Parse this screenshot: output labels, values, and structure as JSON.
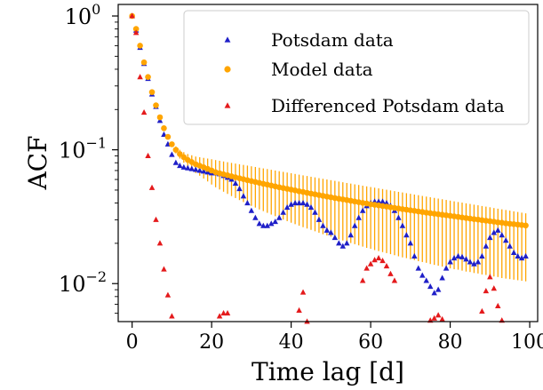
{
  "chart_data": {
    "type": "scatter",
    "title": "",
    "xlabel": "Time lag [d]",
    "ylabel": "ACF",
    "xlim": [
      -3.5,
      102
    ],
    "ylim": [
      0.0052,
      1.22
    ],
    "yscale": "log",
    "grid": false,
    "legend_position": "top-right",
    "x_ticks": [
      0,
      20,
      40,
      60,
      80,
      100
    ],
    "y_ticks": [
      {
        "value": 1,
        "base": "10",
        "exp": "0"
      },
      {
        "value": 0.1,
        "base": "10",
        "exp": "−1"
      },
      {
        "value": 0.01,
        "base": "10",
        "exp": "−2"
      }
    ],
    "colors": {
      "potsdam": "#1f1fc8",
      "model": "#ffa500",
      "differenced": "#e41a1c"
    },
    "series": [
      {
        "name": "Potsdam data",
        "marker": "triangle",
        "x": [
          0,
          1,
          2,
          3,
          4,
          5,
          6,
          7,
          8,
          9,
          10,
          11,
          12,
          13,
          14,
          15,
          16,
          17,
          18,
          19,
          20,
          21,
          22,
          23,
          24,
          25,
          26,
          27,
          28,
          29,
          30,
          31,
          32,
          33,
          34,
          35,
          36,
          37,
          38,
          39,
          40,
          41,
          42,
          43,
          44,
          45,
          46,
          47,
          48,
          49,
          50,
          51,
          52,
          53,
          54,
          55,
          56,
          57,
          58,
          59,
          60,
          61,
          62,
          63,
          64,
          65,
          66,
          67,
          68,
          69,
          70,
          71,
          72,
          73,
          74,
          75,
          76,
          77,
          78,
          79,
          80,
          81,
          82,
          83,
          84,
          85,
          86,
          87,
          88,
          89,
          90,
          91,
          92,
          93,
          94,
          95,
          96,
          97,
          98,
          99
        ],
        "y": [
          1,
          0.78,
          0.58,
          0.44,
          0.34,
          0.26,
          0.21,
          0.165,
          0.13,
          0.11,
          0.092,
          0.08,
          0.076,
          0.074,
          0.073,
          0.072,
          0.071,
          0.07,
          0.069,
          0.068,
          0.067,
          0.067,
          0.066,
          0.064,
          0.062,
          0.06,
          0.056,
          0.051,
          0.045,
          0.04,
          0.035,
          0.031,
          0.028,
          0.027,
          0.027,
          0.028,
          0.029,
          0.031,
          0.034,
          0.037,
          0.039,
          0.04,
          0.04,
          0.04,
          0.039,
          0.037,
          0.034,
          0.03,
          0.027,
          0.025,
          0.024,
          0.022,
          0.02,
          0.019,
          0.02,
          0.023,
          0.027,
          0.031,
          0.035,
          0.038,
          0.04,
          0.041,
          0.041,
          0.041,
          0.04,
          0.038,
          0.035,
          0.031,
          0.027,
          0.023,
          0.02,
          0.016,
          0.013,
          0.0115,
          0.0105,
          0.0095,
          0.0085,
          0.009,
          0.011,
          0.013,
          0.0145,
          0.0155,
          0.016,
          0.0158,
          0.0152,
          0.0145,
          0.014,
          0.0145,
          0.016,
          0.019,
          0.022,
          0.024,
          0.025,
          0.023,
          0.021,
          0.019,
          0.017,
          0.016,
          0.0155,
          0.016
        ]
      },
      {
        "name": "Model data",
        "marker": "circle",
        "x": [
          0,
          1,
          2,
          3,
          4,
          5,
          6,
          7,
          8,
          9,
          10,
          11,
          12,
          13,
          14,
          15,
          16,
          17,
          18,
          19,
          20,
          21,
          22,
          23,
          24,
          25,
          26,
          27,
          28,
          29,
          30,
          31,
          32,
          33,
          34,
          35,
          36,
          37,
          38,
          39,
          40,
          41,
          42,
          43,
          44,
          45,
          46,
          47,
          48,
          49,
          50,
          51,
          52,
          53,
          54,
          55,
          56,
          57,
          58,
          59,
          60,
          61,
          62,
          63,
          64,
          65,
          66,
          67,
          68,
          69,
          70,
          71,
          72,
          73,
          74,
          75,
          76,
          77,
          78,
          79,
          80,
          81,
          82,
          83,
          84,
          85,
          86,
          87,
          88,
          89,
          90,
          91,
          92,
          93,
          94,
          95,
          96,
          97,
          98,
          99
        ],
        "y": [
          1,
          0.8,
          0.6,
          0.45,
          0.35,
          0.27,
          0.215,
          0.175,
          0.145,
          0.125,
          0.11,
          0.1,
          0.093,
          0.088,
          0.084,
          0.081,
          0.078,
          0.076,
          0.074,
          0.072,
          0.07,
          0.068,
          0.0668,
          0.0656,
          0.0645,
          0.0634,
          0.0623,
          0.0613,
          0.0603,
          0.0593,
          0.0584,
          0.0575,
          0.0566,
          0.0557,
          0.0549,
          0.0541,
          0.0533,
          0.0525,
          0.0518,
          0.0511,
          0.0504,
          0.0497,
          0.049,
          0.0484,
          0.0477,
          0.0471,
          0.0465,
          0.0459,
          0.0453,
          0.0447,
          0.0442,
          0.0436,
          0.0431,
          0.0426,
          0.0421,
          0.0416,
          0.0411,
          0.0406,
          0.0401,
          0.0397,
          0.0392,
          0.0388,
          0.0384,
          0.038,
          0.0376,
          0.0372,
          0.0368,
          0.0364,
          0.036,
          0.0357,
          0.0353,
          0.035,
          0.0346,
          0.0343,
          0.0339,
          0.0336,
          0.0333,
          0.033,
          0.0327,
          0.0324,
          0.0321,
          0.0318,
          0.0315,
          0.0312,
          0.0309,
          0.0306,
          0.0303,
          0.0301,
          0.0298,
          0.0295,
          0.0293,
          0.029,
          0.0287,
          0.0285,
          0.0282,
          0.028,
          0.0278,
          0.0276,
          0.0274,
          0.0272
        ],
        "error_lower": [
          1,
          0.8,
          0.6,
          0.45,
          0.35,
          0.27,
          0.215,
          0.175,
          0.145,
          0.125,
          0.105,
          0.094,
          0.086,
          0.08,
          0.075,
          0.071,
          0.067,
          0.064,
          0.061,
          0.058,
          0.055,
          0.0525,
          0.0505,
          0.0486,
          0.0468,
          0.0451,
          0.0436,
          0.0421,
          0.0407,
          0.0394,
          0.0381,
          0.037,
          0.0358,
          0.0348,
          0.0338,
          0.0328,
          0.0319,
          0.031,
          0.0301,
          0.0293,
          0.0285,
          0.0278,
          0.0271,
          0.0264,
          0.0258,
          0.0252,
          0.0246,
          0.024,
          0.0234,
          0.0229,
          0.0224,
          0.0219,
          0.0214,
          0.021,
          0.0205,
          0.0201,
          0.0197,
          0.0193,
          0.0189,
          0.0185,
          0.0182,
          0.0178,
          0.0175,
          0.0172,
          0.0169,
          0.0166,
          0.0163,
          0.016,
          0.0157,
          0.0155,
          0.0152,
          0.015,
          0.0147,
          0.0145,
          0.0143,
          0.014,
          0.0138,
          0.0136,
          0.0134,
          0.0132,
          0.013,
          0.0128,
          0.0127,
          0.0125,
          0.0123,
          0.0122,
          0.012,
          0.0119,
          0.0117,
          0.0116,
          0.0114,
          0.0113,
          0.0112,
          0.011,
          0.0109,
          0.0108,
          0.0107,
          0.0106,
          0.0105,
          0.0104
        ],
        "error_upper": [
          1,
          0.8,
          0.6,
          0.45,
          0.35,
          0.27,
          0.215,
          0.175,
          0.145,
          0.125,
          0.115,
          0.106,
          0.1,
          0.096,
          0.093,
          0.091,
          0.089,
          0.088,
          0.087,
          0.086,
          0.085,
          0.0838,
          0.0828,
          0.0818,
          0.0808,
          0.0798,
          0.0789,
          0.078,
          0.0771,
          0.0762,
          0.0753,
          0.0744,
          0.0735,
          0.0726,
          0.0718,
          0.0709,
          0.07,
          0.0692,
          0.0684,
          0.0676,
          0.0668,
          0.066,
          0.0652,
          0.0644,
          0.0637,
          0.0629,
          0.0622,
          0.0614,
          0.0607,
          0.06,
          0.0593,
          0.0586,
          0.0579,
          0.0572,
          0.0565,
          0.0559,
          0.0552,
          0.0546,
          0.0539,
          0.0533,
          0.0527,
          0.0521,
          0.0515,
          0.0509,
          0.0503,
          0.0497,
          0.0491,
          0.0485,
          0.048,
          0.0474,
          0.0469,
          0.0463,
          0.0458,
          0.0452,
          0.0447,
          0.0442,
          0.0437,
          0.0432,
          0.0427,
          0.0422,
          0.0417,
          0.0412,
          0.0407,
          0.0403,
          0.0398,
          0.0394,
          0.0389,
          0.0385,
          0.038,
          0.0376,
          0.0372,
          0.0367,
          0.0363,
          0.0359,
          0.0355,
          0.0351,
          0.0347,
          0.0343,
          0.0339,
          0.0335
        ]
      },
      {
        "name": "Differenced Potsdam data",
        "marker": "triangle",
        "x": [
          0,
          1,
          2,
          3,
          4,
          5,
          6,
          7,
          8,
          9,
          10,
          22,
          23,
          24,
          42,
          43,
          44,
          58,
          59,
          60,
          61,
          62,
          63,
          64,
          65,
          66,
          75,
          76,
          77,
          78,
          88,
          89,
          90,
          91,
          92,
          93
        ],
        "y": [
          1,
          0.75,
          0.35,
          0.19,
          0.09,
          0.052,
          0.03,
          0.02,
          0.0128,
          0.0082,
          0.0057,
          0.0057,
          0.006,
          0.006,
          0.0063,
          0.0086,
          0.0052,
          0.0105,
          0.013,
          0.014,
          0.015,
          0.0155,
          0.0148,
          0.0135,
          0.0118,
          0.0105,
          0.0053,
          0.0055,
          0.0058,
          0.0054,
          0.0062,
          0.0088,
          0.0112,
          0.0092,
          0.0068,
          0.0053
        ]
      }
    ]
  }
}
